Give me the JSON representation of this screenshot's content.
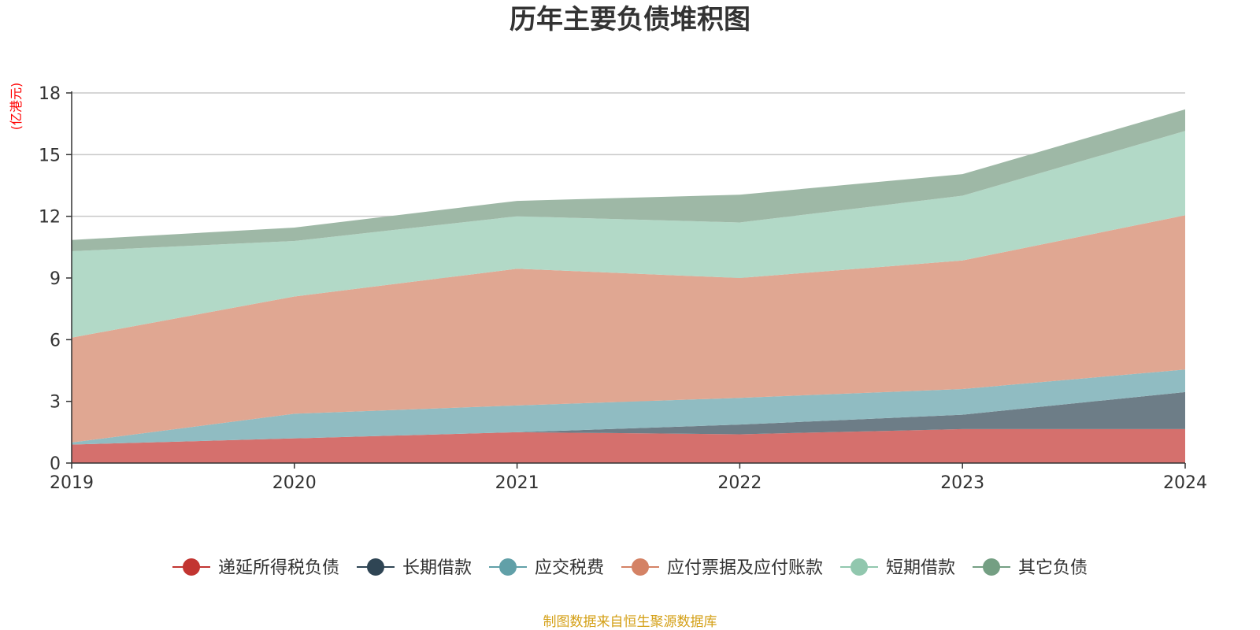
{
  "chart_data": {
    "type": "area",
    "stacked": true,
    "title": "历年主要负债堆积图",
    "unit_label": "(亿港元)",
    "x": [
      "2019",
      "2020",
      "2021",
      "2022",
      "2023",
      "2024"
    ],
    "ylim": [
      0,
      18
    ],
    "yticks": [
      0,
      3,
      6,
      9,
      12,
      15,
      18
    ],
    "grid": true,
    "legend_position": "bottom",
    "series": [
      {
        "name": "递延所得税负债",
        "color": "#c23531",
        "fill": "#d5706d",
        "values": [
          0.9,
          1.2,
          1.5,
          1.4,
          1.65,
          1.65
        ]
      },
      {
        "name": "长期借款",
        "color": "#2f4554",
        "fill": "#6d7d87",
        "values": [
          0.0,
          0.0,
          0.0,
          0.47,
          0.7,
          1.8
        ]
      },
      {
        "name": "应交税费",
        "color": "#61a0a8",
        "fill": "#90bcc2",
        "values": [
          0.1,
          1.2,
          1.3,
          1.3,
          1.25,
          1.1
        ]
      },
      {
        "name": "应付票据及应付账款",
        "color": "#d48265",
        "fill": "#e0a792",
        "values": [
          5.1,
          5.7,
          6.65,
          5.83,
          6.25,
          7.5
        ]
      },
      {
        "name": "短期借款",
        "color": "#91c7ae",
        "fill": "#b2d9c7",
        "values": [
          4.2,
          2.7,
          2.55,
          2.7,
          3.15,
          4.1
        ]
      },
      {
        "name": "其它负债",
        "color": "#749f83",
        "fill": "#9eb8a6",
        "values": [
          0.55,
          0.65,
          0.75,
          1.35,
          1.05,
          1.05
        ]
      }
    ],
    "source_note": "制图数据来自恒生聚源数据库",
    "colors": {
      "title": "#333333",
      "axis": "#333333",
      "grid": "#c8c8c8",
      "unit": "#ff0000",
      "source": "#d4a017"
    }
  }
}
